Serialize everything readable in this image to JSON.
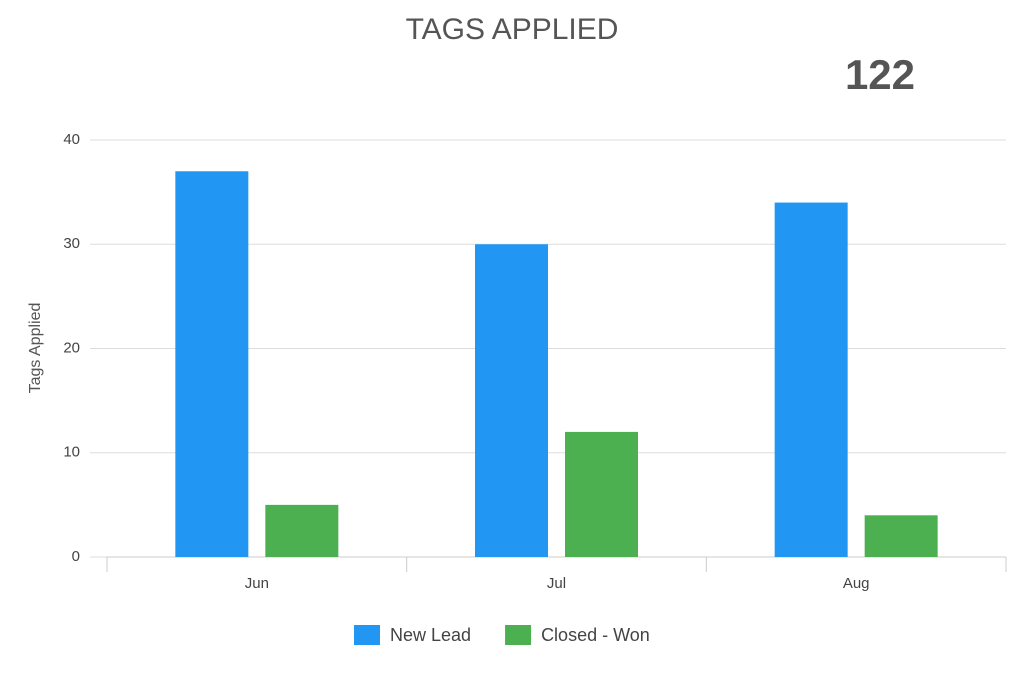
{
  "chart_data": {
    "type": "bar",
    "title": "TAGS APPLIED",
    "total": 122,
    "y_label": "Tags Applied",
    "categories": [
      "Jun",
      "Jul",
      "Aug"
    ],
    "series": [
      {
        "name": "New Lead",
        "color": "#2196f3",
        "values": [
          37,
          30,
          34
        ]
      },
      {
        "name": "Closed - Won",
        "color": "#4caf50",
        "values": [
          5,
          12,
          4
        ]
      }
    ],
    "ylim": [
      0,
      40
    ],
    "yticks": [
      0,
      10,
      20,
      30,
      40
    ],
    "grid": true
  }
}
